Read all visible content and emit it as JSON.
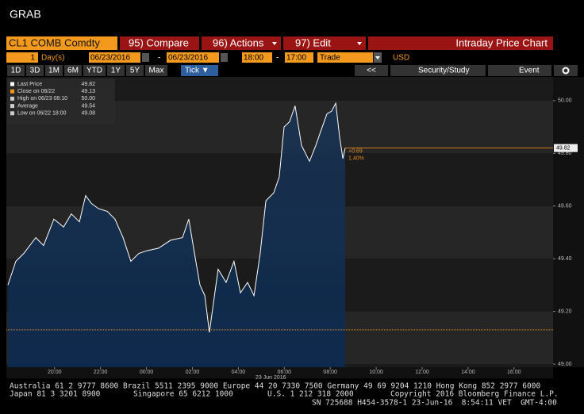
{
  "window_title": "GRAB",
  "toolbar": {
    "security": "CL1 COMB Comdty",
    "menu": [
      "95) Compare",
      "96) Actions",
      "97) Edit"
    ],
    "view_title": "Intraday Price Chart",
    "period_count": "1",
    "period_unit": "Day(s)",
    "start_date": "06/23/2016",
    "end_date": "06/23/2016",
    "start_time": "18:00",
    "end_time": "17:00",
    "field": "Trade",
    "currency": "USD",
    "ranges": [
      "1D",
      "3D",
      "1M",
      "6M",
      "YTD",
      "1Y",
      "5Y",
      "Max"
    ],
    "active_range": "Tick ▼",
    "right_buttons": [
      "<<",
      "Security/Study",
      "Event"
    ]
  },
  "chart_data": {
    "type": "line",
    "date_label": "23 Jun 2016",
    "line_color": "#ffffff",
    "ref_color": "#e08a1e",
    "x": [
      17.97,
      18.31,
      18.66,
      19.18,
      19.52,
      19.97,
      20.39,
      20.73,
      21.08,
      21.35,
      21.6,
      21.91,
      22.29,
      22.63,
      22.98,
      23.32,
      23.67,
      24.01,
      24.53,
      25.05,
      25.57,
      25.84,
      26.09,
      26.33,
      26.54,
      26.74,
      26.88,
      27.12,
      27.47,
      27.81,
      28.09,
      28.4,
      28.68,
      28.95,
      29.2,
      29.54,
      29.78,
      29.99,
      30.23,
      30.47,
      30.75,
      31.1,
      31.37,
      31.61,
      31.86,
      32.06,
      32.24,
      32.41,
      32.55,
      32.65
    ],
    "values": [
      49.3,
      49.39,
      49.42,
      49.48,
      49.45,
      49.55,
      49.52,
      49.57,
      49.54,
      49.64,
      49.61,
      49.59,
      49.58,
      49.55,
      49.48,
      49.39,
      49.42,
      49.43,
      49.44,
      49.47,
      49.48,
      49.55,
      49.42,
      49.3,
      49.26,
      49.12,
      49.21,
      49.36,
      49.31,
      49.39,
      49.27,
      49.31,
      49.26,
      49.42,
      49.62,
      49.65,
      49.71,
      49.9,
      49.92,
      49.98,
      49.83,
      49.77,
      49.83,
      49.89,
      49.95,
      49.96,
      49.99,
      49.86,
      49.78,
      49.82
    ],
    "xlim": [
      17.9,
      41.7
    ],
    "ylim": [
      48.988,
      50.09
    ],
    "xticks": [
      {
        "value": 20,
        "label": "20:00"
      },
      {
        "value": 22,
        "label": "22:00"
      },
      {
        "value": 24,
        "label": "00:00"
      },
      {
        "value": 26,
        "label": "02:00"
      },
      {
        "value": 28,
        "label": "04:00"
      },
      {
        "value": 30,
        "label": "06:00"
      },
      {
        "value": 32,
        "label": "08:00"
      },
      {
        "value": 34,
        "label": "10:00"
      },
      {
        "value": 36,
        "label": "12:00"
      },
      {
        "value": 38,
        "label": "14:00"
      },
      {
        "value": 40,
        "label": "16:00"
      }
    ],
    "yticks": [
      {
        "value": 49,
        "label": "49.00"
      },
      {
        "value": 49.2,
        "label": "49.20"
      },
      {
        "value": 49.4,
        "label": "49.40"
      },
      {
        "value": 49.6,
        "label": "49.60"
      },
      {
        "value": 49.8,
        "label": "49.80"
      },
      {
        "value": 50,
        "label": "50.00"
      }
    ],
    "last_price": 49.82,
    "prev_close": 49.13,
    "change": "+0.69",
    "change_pct": "1.40%",
    "legend": [
      {
        "label": "Last Price",
        "value": "49.82"
      },
      {
        "label": "Close on 06/22",
        "value": "49.13"
      },
      {
        "label": "High on 06/23 08:10",
        "value": "50.00"
      },
      {
        "label": "Average",
        "value": "49.54"
      },
      {
        "label": "Low on 06/22 18:00",
        "value": "49.08"
      }
    ]
  },
  "footer": {
    "line1": "Australia 61 2 9777 8600 Brazil 5511 2395 9000 Europe 44 20 7330 7500 Germany 49 69 9204 1210 Hong Kong 852 2977 6000",
    "line2": [
      "Japan 81 3 3201 8900",
      "Singapore 65 6212 1000",
      "U.S. 1 212 318 2000",
      "Copyright 2016 Bloomberg Finance L.P."
    ],
    "line3": "SN 725688 H454-3578-1 23-Jun-16  8:54:11 VET  GMT-4:00"
  }
}
